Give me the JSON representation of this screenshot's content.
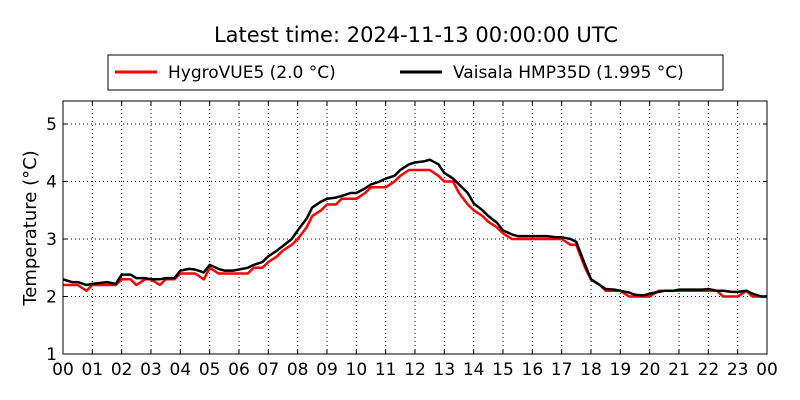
{
  "chart_data": {
    "type": "line",
    "title": "Latest time: 2024-11-13 00:00:00 UTC",
    "xlabel": "",
    "ylabel": "Temperature (°C)",
    "xlim": [
      0,
      24
    ],
    "ylim": [
      1,
      5.4
    ],
    "x_ticks": [
      0,
      1,
      2,
      3,
      4,
      5,
      6,
      7,
      8,
      9,
      10,
      11,
      12,
      13,
      14,
      15,
      16,
      17,
      18,
      19,
      20,
      21,
      22,
      23,
      24
    ],
    "x_tick_labels": [
      "00",
      "01",
      "02",
      "03",
      "04",
      "05",
      "06",
      "07",
      "08",
      "09",
      "10",
      "11",
      "12",
      "13",
      "14",
      "15",
      "16",
      "17",
      "18",
      "19",
      "20",
      "21",
      "22",
      "23",
      "00"
    ],
    "y_ticks": [
      1,
      2,
      3,
      4,
      5
    ],
    "y_tick_labels": [
      "1",
      "2",
      "3",
      "4",
      "5"
    ],
    "grid": true,
    "legend_position": "top-center, above plot",
    "series": [
      {
        "name": "HygroVUE5 (2.0 °C)",
        "color": "#ff0000",
        "x": [
          0,
          0.3,
          0.5,
          0.8,
          1,
          1.5,
          1.8,
          2,
          2.3,
          2.5,
          2.8,
          3,
          3.3,
          3.5,
          3.8,
          4,
          4.3,
          4.5,
          4.8,
          5,
          5.3,
          5.5,
          5.8,
          6,
          6.3,
          6.5,
          6.8,
          7,
          7.3,
          7.5,
          7.8,
          8,
          8.3,
          8.5,
          8.8,
          9,
          9.3,
          9.5,
          9.8,
          10,
          10.3,
          10.5,
          10.8,
          11,
          11.3,
          11.5,
          11.8,
          12,
          12.3,
          12.5,
          12.8,
          13,
          13.3,
          13.5,
          13.8,
          14,
          14.3,
          14.5,
          14.8,
          15,
          15.3,
          15.5,
          15.8,
          16,
          16.3,
          16.5,
          16.8,
          17,
          17.3,
          17.5,
          17.8,
          18,
          18.3,
          18.5,
          18.8,
          19,
          19.3,
          19.5,
          19.8,
          20,
          20.3,
          20.5,
          20.8,
          21,
          21.3,
          21.5,
          21.8,
          22,
          22.3,
          22.5,
          22.8,
          23,
          23.3,
          23.5,
          23.8,
          24
        ],
        "values": [
          2.2,
          2.2,
          2.2,
          2.1,
          2.2,
          2.2,
          2.2,
          2.3,
          2.3,
          2.2,
          2.3,
          2.3,
          2.2,
          2.3,
          2.3,
          2.4,
          2.4,
          2.4,
          2.3,
          2.5,
          2.4,
          2.4,
          2.4,
          2.4,
          2.4,
          2.5,
          2.5,
          2.6,
          2.7,
          2.8,
          2.9,
          3.0,
          3.2,
          3.4,
          3.5,
          3.6,
          3.6,
          3.7,
          3.7,
          3.7,
          3.8,
          3.9,
          3.9,
          3.9,
          4.0,
          4.1,
          4.2,
          4.2,
          4.2,
          4.2,
          4.1,
          4.0,
          4.0,
          3.8,
          3.6,
          3.5,
          3.4,
          3.3,
          3.2,
          3.1,
          3.0,
          3.0,
          3.0,
          3.0,
          3.0,
          3.0,
          3.0,
          3.0,
          2.9,
          2.9,
          2.5,
          2.3,
          2.2,
          2.1,
          2.1,
          2.1,
          2.0,
          2.0,
          2.0,
          2.0,
          2.1,
          2.1,
          2.1,
          2.1,
          2.1,
          2.1,
          2.1,
          2.1,
          2.1,
          2.0,
          2.0,
          2.0,
          2.1,
          2.0,
          2.0,
          2.0
        ]
      },
      {
        "name": "Vaisala HMP35D (1.995 °C)",
        "color": "#000000",
        "x": [
          0,
          0.3,
          0.5,
          0.8,
          1,
          1.5,
          1.8,
          2,
          2.3,
          2.5,
          2.8,
          3,
          3.3,
          3.5,
          3.8,
          4,
          4.3,
          4.5,
          4.8,
          5,
          5.3,
          5.5,
          5.8,
          6,
          6.3,
          6.5,
          6.8,
          7,
          7.3,
          7.5,
          7.8,
          8,
          8.3,
          8.5,
          8.8,
          9,
          9.3,
          9.5,
          9.8,
          10,
          10.3,
          10.5,
          10.8,
          11,
          11.3,
          11.5,
          11.8,
          12,
          12.3,
          12.5,
          12.8,
          13,
          13.3,
          13.5,
          13.8,
          14,
          14.3,
          14.5,
          14.8,
          15,
          15.3,
          15.5,
          15.8,
          16,
          16.3,
          16.5,
          16.8,
          17,
          17.3,
          17.5,
          17.8,
          18,
          18.3,
          18.5,
          18.8,
          19,
          19.3,
          19.5,
          19.8,
          20,
          20.3,
          20.5,
          20.8,
          21,
          21.3,
          21.5,
          21.8,
          22,
          22.3,
          22.5,
          22.8,
          23,
          23.3,
          23.5,
          23.8,
          24
        ],
        "values": [
          2.3,
          2.25,
          2.25,
          2.2,
          2.22,
          2.25,
          2.22,
          2.38,
          2.38,
          2.32,
          2.32,
          2.3,
          2.3,
          2.32,
          2.32,
          2.45,
          2.48,
          2.47,
          2.42,
          2.55,
          2.48,
          2.45,
          2.45,
          2.47,
          2.5,
          2.55,
          2.6,
          2.7,
          2.8,
          2.88,
          3.0,
          3.15,
          3.35,
          3.55,
          3.65,
          3.7,
          3.72,
          3.75,
          3.8,
          3.8,
          3.88,
          3.95,
          4.0,
          4.05,
          4.1,
          4.2,
          4.3,
          4.33,
          4.35,
          4.38,
          4.3,
          4.15,
          4.05,
          3.95,
          3.8,
          3.62,
          3.5,
          3.4,
          3.28,
          3.15,
          3.08,
          3.05,
          3.05,
          3.05,
          3.05,
          3.05,
          3.03,
          3.03,
          3.0,
          2.95,
          2.55,
          2.3,
          2.2,
          2.13,
          2.12,
          2.1,
          2.07,
          2.03,
          2.02,
          2.05,
          2.08,
          2.1,
          2.1,
          2.12,
          2.12,
          2.12,
          2.12,
          2.13,
          2.1,
          2.1,
          2.08,
          2.08,
          2.1,
          2.05,
          2.0,
          2.0
        ]
      }
    ]
  }
}
